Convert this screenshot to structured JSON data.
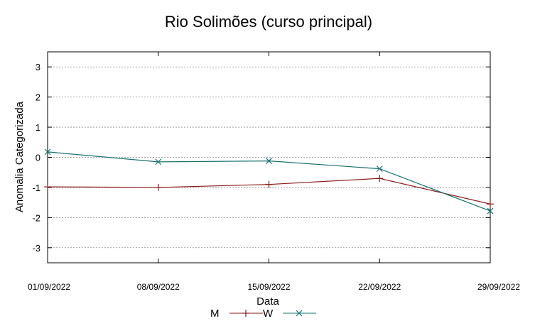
{
  "chart_data": {
    "type": "line",
    "title": "Rio Solimões (curso principal)",
    "xlabel": "Data",
    "ylabel": "Anomalia Categorizada",
    "categories": [
      "01/09/2022",
      "08/09/2022",
      "15/09/2022",
      "22/09/2022",
      "29/09/2022"
    ],
    "yticks": [
      -3,
      -2,
      -1,
      0,
      1,
      2,
      3
    ],
    "ylim": [
      -3.5,
      3.5
    ],
    "grid": true,
    "legend_position": "bottom-center",
    "series": [
      {
        "name": "M",
        "marker": "plus",
        "color": "#8b1a1a",
        "values": [
          -0.98,
          -1.0,
          -0.9,
          -0.7,
          -1.55
        ]
      },
      {
        "name": "W",
        "marker": "x",
        "color": "#1a7070",
        "values": [
          0.18,
          -0.15,
          -0.12,
          -0.38,
          -1.78
        ]
      }
    ]
  }
}
